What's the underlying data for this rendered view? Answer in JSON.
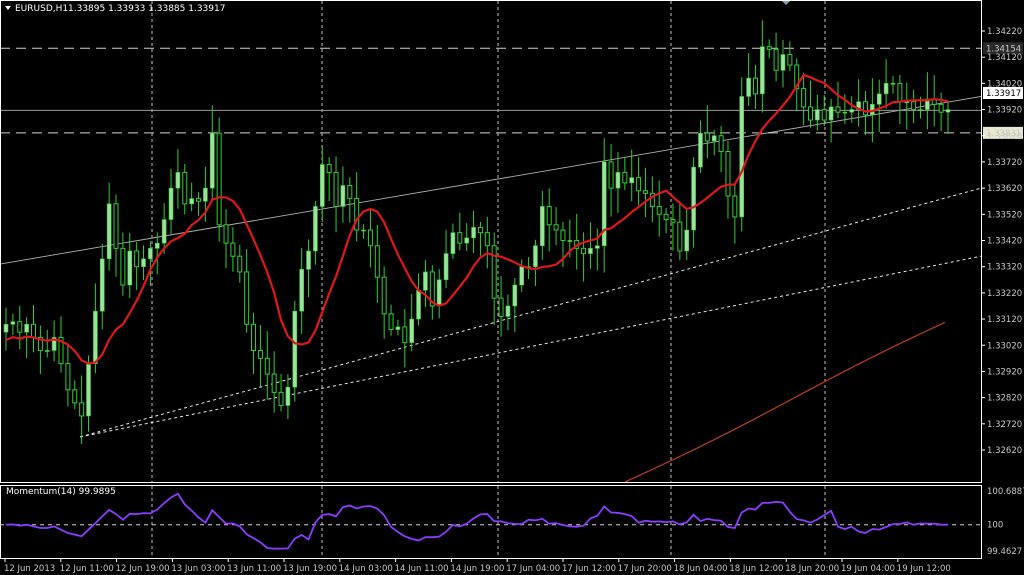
{
  "header": {
    "symbol": "EURUSD,H1",
    "ohlc": "1.33895 1.33933 1.33885 1.33917"
  },
  "indicator": {
    "label": "Momentum(14) 99.9895",
    "levels": [
      "100.6887",
      "100",
      "99.4627"
    ],
    "ylim": [
      99.4627,
      100.6887
    ]
  },
  "colors": {
    "background": "#000000",
    "candle_up": "#9fe0a0",
    "wick": "#2fcf2f",
    "ma_fast": "#e01818",
    "ma_slow": "#b03a22",
    "momentum": "#8a3cff",
    "grid": "#bfbfbf"
  },
  "chart_data": {
    "type": "candlestick",
    "price_axis_labels": [
      "1.34220",
      "1.34120",
      "1.34020",
      "1.33920",
      "1.33820",
      "1.33720",
      "1.33620",
      "1.33520",
      "1.33420",
      "1.33320",
      "1.33220",
      "1.33120",
      "1.33020",
      "1.32920",
      "1.32820",
      "1.32720",
      "1.32620"
    ],
    "ylim": [
      1.3262,
      1.3422
    ],
    "current_price": "1.33917",
    "horizontal_line_labels": [
      "1.34154",
      "1.33831"
    ],
    "time_labels": [
      "12 Jun 2013",
      "12 Jun 11:00",
      "12 Jun 19:00",
      "13 Jun 03:00",
      "13 Jun 11:00",
      "13 Jun 19:00",
      "14 Jun 03:00",
      "14 Jun 11:00",
      "14 Jun 19:00",
      "17 Jun 04:00",
      "17 Jun 12:00",
      "17 Jun 20:00",
      "18 Jun 04:00",
      "18 Jun 12:00",
      "18 Jun 20:00",
      "19 Jun 04:00",
      "19 Jun 12:00"
    ],
    "close": [
      1.331,
      1.3311,
      1.3307,
      1.331,
      1.3305,
      1.33,
      1.33,
      1.3305,
      1.3295,
      1.3285,
      1.328,
      1.3275,
      1.3295,
      1.3315,
      1.3335,
      1.3356,
      1.3339,
      1.3325,
      1.3338,
      1.3332,
      1.3335,
      1.3339,
      1.3341,
      1.335,
      1.3362,
      1.3368,
      1.3356,
      1.3358,
      1.3357,
      1.3362,
      1.3383,
      1.3348,
      1.3341,
      1.3336,
      1.333,
      1.331,
      1.33,
      1.3297,
      1.3291,
      1.3284,
      1.3279,
      1.3286,
      1.3315,
      1.3331,
      1.3338,
      1.3355,
      1.3371,
      1.3368,
      1.3355,
      1.3363,
      1.3358,
      1.3346,
      1.3346,
      1.334,
      1.3328,
      1.3314,
      1.3308,
      1.3309,
      1.3303,
      1.3312,
      1.3323,
      1.333,
      1.3317,
      1.3327,
      1.3337,
      1.3345,
      1.3341,
      1.3343,
      1.3347,
      1.3345,
      1.334,
      1.332,
      1.3313,
      1.3317,
      1.3325,
      1.3332,
      1.3332,
      1.334,
      1.3355,
      1.3348,
      1.3346,
      1.3342,
      1.3342,
      1.3339,
      1.3337,
      1.3339,
      1.334,
      1.3372,
      1.3362,
      1.3368,
      1.3364,
      1.3366,
      1.3361,
      1.336,
      1.3355,
      1.3352,
      1.335,
      1.3349,
      1.3338,
      1.3346,
      1.337,
      1.3383,
      1.338,
      1.3382,
      1.3376,
      1.3359,
      1.3351,
      1.3397,
      1.3404,
      1.3398,
      1.3416,
      1.3415,
      1.3407,
      1.3413,
      1.3409,
      1.34,
      1.3393,
      1.3388,
      1.3392,
      1.3388,
      1.3393,
      1.3391,
      1.3391,
      1.3392,
      1.3395,
      1.339,
      1.3394,
      1.3398,
      1.3402,
      1.3402,
      1.3395,
      1.3395,
      1.3392,
      1.3392,
      1.3396,
      1.3394,
      1.3391,
      1.3392
    ]
  }
}
